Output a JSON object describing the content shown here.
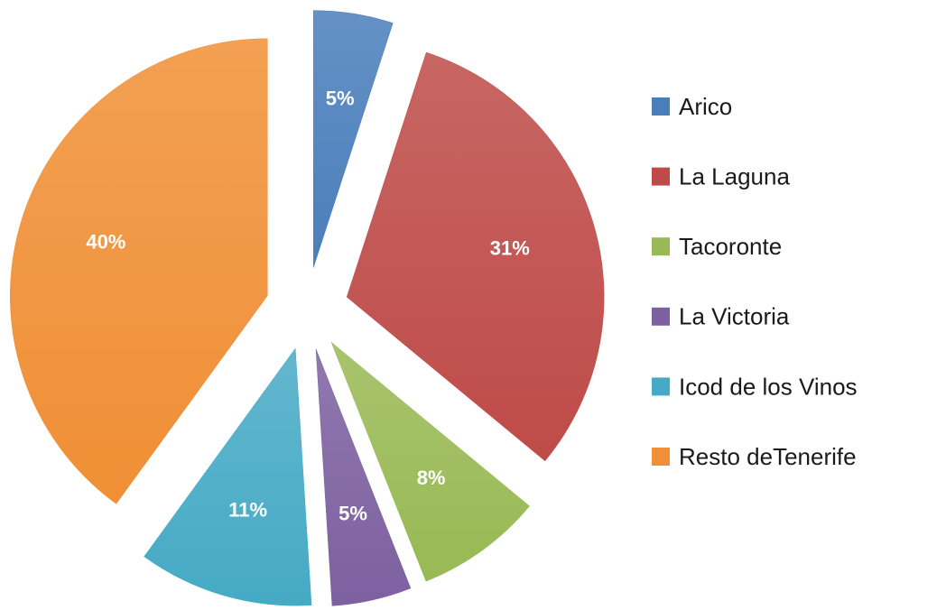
{
  "chart_data": {
    "type": "pie",
    "categories": [
      "Arico",
      "La Laguna",
      "Tacoronte",
      "La Victoria",
      "Icod de los Vinos",
      "Resto deTenerife"
    ],
    "values": [
      5,
      31,
      8,
      5,
      11,
      40
    ],
    "value_labels": [
      "5%",
      "31%",
      "8%",
      "5%",
      "11%",
      "40%"
    ],
    "colors": [
      "#4a7ebb",
      "#be4b48",
      "#98b954",
      "#7d60a0",
      "#46aac5",
      "#f08f35"
    ],
    "legend": "right"
  }
}
